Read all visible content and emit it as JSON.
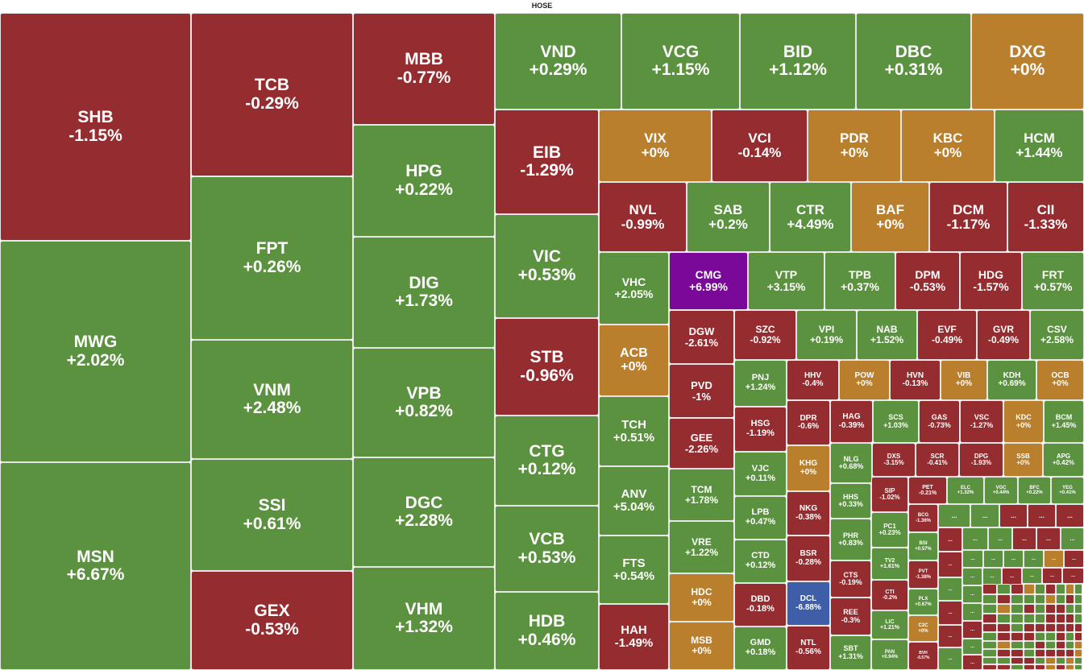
{
  "exchange": "HOSE",
  "colors": {
    "up": "#5b923f",
    "down": "#952c2f",
    "flat": "#b97f2c",
    "ceiling": "#7a0898",
    "floor": "#3f5ea8"
  },
  "chart_data": {
    "type": "treemap",
    "title": "HOSE",
    "cells": [
      {
        "label": "SHB",
        "change": "-1.15%"
      },
      {
        "label": "MWG",
        "change": "+2.02%"
      },
      {
        "label": "MSN",
        "change": "+6.67%"
      },
      {
        "label": "TCB",
        "change": "-0.29%"
      },
      {
        "label": "FPT",
        "change": "+0.26%"
      },
      {
        "label": "VNM",
        "change": "+2.48%"
      },
      {
        "label": "SSI",
        "change": "+0.61%"
      },
      {
        "label": "GEX",
        "change": "-0.53%"
      },
      {
        "label": "MBB",
        "change": "-0.77%"
      },
      {
        "label": "HPG",
        "change": "+0.22%"
      },
      {
        "label": "DIG",
        "change": "+1.73%"
      },
      {
        "label": "VPB",
        "change": "+0.82%"
      },
      {
        "label": "DGC",
        "change": "+2.28%"
      },
      {
        "label": "VHM",
        "change": "+1.32%"
      },
      {
        "label": "VND",
        "change": "+0.29%"
      },
      {
        "label": "VCG",
        "change": "+1.15%"
      },
      {
        "label": "BID",
        "change": "+1.12%"
      },
      {
        "label": "DBC",
        "change": "+0.31%"
      },
      {
        "label": "DXG",
        "change": "+0%"
      },
      {
        "label": "EIB",
        "change": "-1.29%"
      },
      {
        "label": "VIC",
        "change": "+0.53%"
      },
      {
        "label": "STB",
        "change": "-0.96%"
      },
      {
        "label": "CTG",
        "change": "+0.12%"
      },
      {
        "label": "VCB",
        "change": "+0.53%"
      },
      {
        "label": "HDB",
        "change": "+0.46%"
      },
      {
        "label": "VIX",
        "change": "+0%"
      },
      {
        "label": "VCI",
        "change": "-0.14%"
      },
      {
        "label": "PDR",
        "change": "+0%"
      },
      {
        "label": "KBC",
        "change": "+0%"
      },
      {
        "label": "HCM",
        "change": "+1.44%"
      },
      {
        "label": "NVL",
        "change": "-0.99%"
      },
      {
        "label": "SAB",
        "change": "+0.2%"
      },
      {
        "label": "CTR",
        "change": "+4.49%"
      },
      {
        "label": "BAF",
        "change": "+0%"
      },
      {
        "label": "DCM",
        "change": "-1.17%"
      },
      {
        "label": "CII",
        "change": "-1.33%"
      },
      {
        "label": "VHC",
        "change": "+2.05%"
      },
      {
        "label": "CMG",
        "change": "+6.99%"
      },
      {
        "label": "VTP",
        "change": "+3.15%"
      },
      {
        "label": "TPB",
        "change": "+0.37%"
      },
      {
        "label": "DPM",
        "change": "-0.53%"
      },
      {
        "label": "HDG",
        "change": "-1.57%"
      },
      {
        "label": "FRT",
        "change": "+0.57%"
      },
      {
        "label": "ACB",
        "change": "+0%"
      },
      {
        "label": "DGW",
        "change": "-2.61%"
      },
      {
        "label": "SZC",
        "change": "-0.92%"
      },
      {
        "label": "VPI",
        "change": "+0.19%"
      },
      {
        "label": "NAB",
        "change": "+1.52%"
      },
      {
        "label": "EVF",
        "change": "-0.49%"
      },
      {
        "label": "GVR",
        "change": "-0.49%"
      },
      {
        "label": "CSV",
        "change": "+2.58%"
      },
      {
        "label": "TCH",
        "change": "+0.51%"
      },
      {
        "label": "PVD",
        "change": "-1%"
      },
      {
        "label": "PNJ",
        "change": "+1.24%"
      },
      {
        "label": "HHV",
        "change": "-0.4%"
      },
      {
        "label": "POW",
        "change": "+0%"
      },
      {
        "label": "HVN",
        "change": "-0.13%"
      },
      {
        "label": "VIB",
        "change": "+0%"
      },
      {
        "label": "KDH",
        "change": "+0.69%"
      },
      {
        "label": "OCB",
        "change": "+0%"
      },
      {
        "label": "ANV",
        "change": "+5.04%"
      },
      {
        "label": "GEE",
        "change": "-2.26%"
      },
      {
        "label": "HSG",
        "change": "-1.19%"
      },
      {
        "label": "DPR",
        "change": "-0.6%"
      },
      {
        "label": "HAG",
        "change": "-0.39%"
      },
      {
        "label": "SCS",
        "change": "+1.03%"
      },
      {
        "label": "GAS",
        "change": "-0.73%"
      },
      {
        "label": "VSC",
        "change": "-1.27%"
      },
      {
        "label": "KDC",
        "change": "+0%"
      },
      {
        "label": "BCM",
        "change": "+1.45%"
      },
      {
        "label": "FTS",
        "change": "+0.54%"
      },
      {
        "label": "TCM",
        "change": "+1.78%"
      },
      {
        "label": "VJC",
        "change": "+0.11%"
      },
      {
        "label": "KHG",
        "change": "+0%"
      },
      {
        "label": "NLG",
        "change": "+0.68%"
      },
      {
        "label": "DXS",
        "change": "-3.15%"
      },
      {
        "label": "SCR",
        "change": "-0.41%"
      },
      {
        "label": "DPG",
        "change": "-1.93%"
      },
      {
        "label": "SSB",
        "change": "+0%"
      },
      {
        "label": "APG",
        "change": "+0.42%"
      },
      {
        "label": "HAH",
        "change": "-1.49%"
      },
      {
        "label": "VRE",
        "change": "+1.22%"
      },
      {
        "label": "LPB",
        "change": "+0.47%"
      },
      {
        "label": "NKG",
        "change": "-0.38%"
      },
      {
        "label": "HHS",
        "change": "+0.33%"
      },
      {
        "label": "SIP",
        "change": "-1.02%"
      },
      {
        "label": "PET",
        "change": "-0.21%"
      },
      {
        "label": "ELC",
        "change": "+1.32%"
      },
      {
        "label": "VGC",
        "change": "+0.44%"
      },
      {
        "label": "BFC",
        "change": "+0.22%"
      },
      {
        "label": "YEG",
        "change": "+0.41%"
      },
      {
        "label": "PC1",
        "change": "+0.23%"
      },
      {
        "label": "BCG",
        "change": "-1.36%"
      },
      {
        "label": "BSI",
        "change": "+0.57%"
      },
      {
        "label": "HDC",
        "change": "+0%"
      },
      {
        "label": "CTD",
        "change": "+0.12%"
      },
      {
        "label": "BSR",
        "change": "-0.28%"
      },
      {
        "label": "PHR",
        "change": "+0.83%"
      },
      {
        "label": "TV2",
        "change": "+1.61%"
      },
      {
        "label": "PVT",
        "change": "-1.38%"
      },
      {
        "label": "CTS",
        "change": "-0.19%"
      },
      {
        "label": "CTI",
        "change": "-0.2%"
      },
      {
        "label": "PLX",
        "change": "+0.67%"
      },
      {
        "label": "DBD",
        "change": "-0.18%"
      },
      {
        "label": "DCL",
        "change": "-6.88%"
      },
      {
        "label": "REE",
        "change": "-0.3%"
      },
      {
        "label": "LIC",
        "change": "+1.21%"
      },
      {
        "label": "C2C",
        "change": "+0%"
      },
      {
        "label": "MSB",
        "change": "+0%"
      },
      {
        "label": "GMD",
        "change": "+0.18%"
      },
      {
        "label": "NTL",
        "change": "-0.56%"
      },
      {
        "label": "SBT",
        "change": "+1.31%"
      },
      {
        "label": "PAN",
        "change": "+0.94%"
      },
      {
        "label": "BVH",
        "change": "-0.57%"
      }
    ],
    "small_cell_label": "..."
  }
}
